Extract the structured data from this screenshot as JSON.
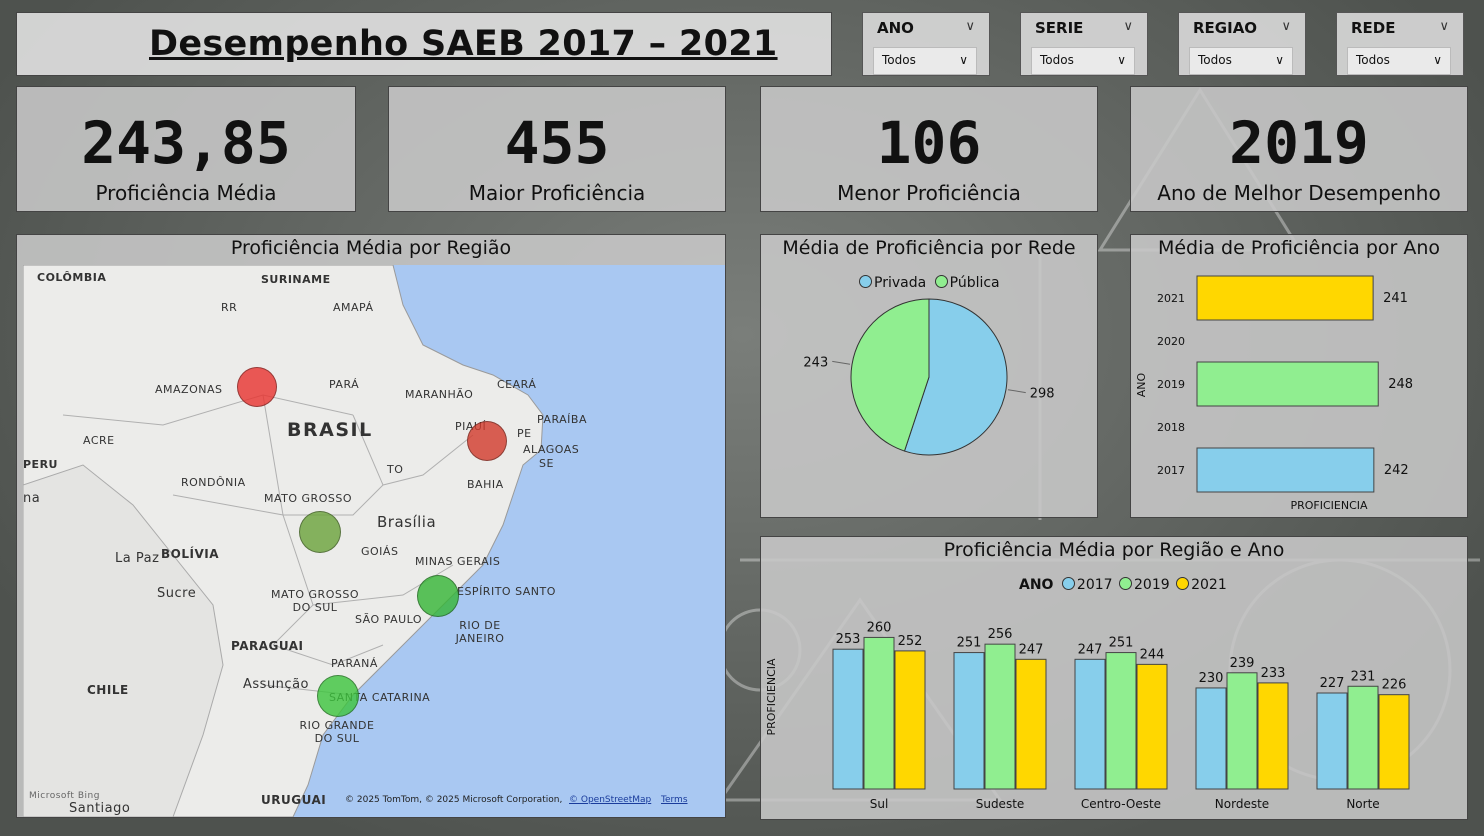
{
  "header": {
    "title": "Desempenho SAEB 2017 – 2021"
  },
  "slicers": [
    {
      "label": "ANO",
      "value": "Todos"
    },
    {
      "label": "SERIE",
      "value": "Todos"
    },
    {
      "label": "REGIAO",
      "value": "Todos"
    },
    {
      "label": "REDE",
      "value": "Todos"
    }
  ],
  "kpis": [
    {
      "value": "243,85",
      "caption": "Proficiência Média"
    },
    {
      "value": "455",
      "caption": "Maior Proficiência"
    },
    {
      "value": "106",
      "caption": "Menor Proficiência"
    },
    {
      "value": "2019",
      "caption": "Ano de Melhor Desempenho"
    }
  ],
  "map_panel": {
    "title": "Proficiência Média por Região",
    "labels": {
      "colombia": "COLÔMBIA",
      "suriname": "SURINAME",
      "rr": "RR",
      "amapa": "AMAPÁ",
      "amazonas": "AMAZONAS",
      "para": "PARÁ",
      "maranhao": "MARANHÃO",
      "ceara": "CEARÁ",
      "paraiba": "PARAÍBA",
      "piaui": "PIAUÍ",
      "pe": "PE",
      "alagoas": "ALAGOAS",
      "se": "SE",
      "brasil": "BRASIL",
      "acre": "ACRE",
      "peru": "PERU",
      "to": "TO",
      "bahia": "BAHIA",
      "rondonia": "RONDÔNIA",
      "mato_grosso": "MATO GROSSO",
      "brasilia": "Brasília",
      "la_paz": "La Paz",
      "bolivia": "BOLÍVIA",
      "goias": "GOIÁS",
      "minas": "MINAS GERAIS",
      "sucre": "Sucre",
      "ms": "MATO GROSSO DO SUL",
      "espirito": "ESPÍRITO SANTO",
      "sao_paulo": "SÃO PAULO",
      "rio": "RIO DE JANEIRO",
      "paraguai": "PARAGUAI",
      "parana": "PARANÁ",
      "assuncao": "Assunção",
      "santa_catarina": "SANTA CATARINA",
      "chile": "CHILE",
      "rs": "RIO GRANDE DO SUL",
      "uruguai": "URUGUAI",
      "santiago": "Santiago",
      "na": "na"
    },
    "attribution": "© 2025 TomTom, © 2025 Microsoft Corporation,",
    "osm": "© OpenStreetMap",
    "terms": "Terms",
    "bing": "Microsoft Bing",
    "region_colors": {
      "Norte": "#e8322e",
      "Nordeste": "#d23a2a",
      "Centro-Oeste": "#6aa33a",
      "Sudeste": "#35b535",
      "Sul": "#3cc43c"
    }
  },
  "colors": {
    "2017": "#87ceeb",
    "2019": "#90ee90",
    "2021": "#ffd700",
    "Privada": "#87ceeb",
    "Publica": "#90ee90"
  },
  "chart_data": [
    {
      "type": "pie",
      "title": "Média de Proficiência por Rede",
      "legend_position": "top",
      "labels": [
        "Privada",
        "Pública"
      ],
      "values": [
        298,
        243
      ]
    },
    {
      "type": "bar",
      "orientation": "horizontal",
      "title": "Média de Proficiência por Ano",
      "ylabel": "ANO",
      "xlabel": "PROFICIENCIA",
      "categories": [
        "2021",
        "2020",
        "2019",
        "2018",
        "2017"
      ],
      "values": [
        241,
        null,
        248,
        null,
        242
      ]
    },
    {
      "type": "bar",
      "title": "Proficiência Média por Região e Ano",
      "legend_title": "ANO",
      "legend_position": "top",
      "ylabel": "PROFICIENCIA",
      "categories": [
        "Sul",
        "Sudeste",
        "Centro-Oeste",
        "Nordeste",
        "Norte"
      ],
      "series": [
        {
          "name": "2017",
          "values": [
            253,
            251,
            247,
            230,
            227
          ]
        },
        {
          "name": "2019",
          "values": [
            260,
            256,
            251,
            239,
            231
          ]
        },
        {
          "name": "2021",
          "values": [
            252,
            247,
            244,
            233,
            226
          ]
        }
      ]
    }
  ]
}
